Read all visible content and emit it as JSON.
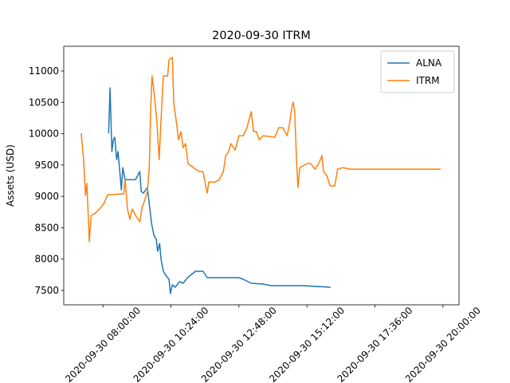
{
  "chart_data": {
    "type": "line",
    "title": "2020-09-30 ITRM",
    "y_label": "Assets (USD)",
    "xlim": [
      "2020-09-30 06:37:00",
      "2020-09-30 20:34:00"
    ],
    "xticks": [
      "2020-09-30 08:00:00",
      "2020-09-30 10:24:00",
      "2020-09-30 12:48:00",
      "2020-09-30 15:12:00",
      "2020-09-30 17:36:00",
      "2020-09-30 20:00:00"
    ],
    "ylim": [
      7271,
      11394
    ],
    "yticks": [
      7500,
      8000,
      8500,
      9000,
      9500,
      10000,
      10500,
      11000
    ],
    "legend": "upper right",
    "series": [
      {
        "name": "ALNA",
        "color": "#1f77b4",
        "x": [
          "2020-09-30 08:12:00",
          "2020-09-30 08:15:00",
          "2020-09-30 08:19:00",
          "2020-09-30 08:22:00",
          "2020-09-30 08:25:00",
          "2020-09-30 08:29:00",
          "2020-09-30 08:32:00",
          "2020-09-30 08:35:00",
          "2020-09-30 08:39:00",
          "2020-09-30 08:42:00",
          "2020-09-30 08:47:00",
          "2020-09-30 09:09:00",
          "2020-09-30 09:18:00",
          "2020-09-30 09:21:00",
          "2020-09-30 09:26:00",
          "2020-09-30 09:34:00",
          "2020-09-30 09:40:00",
          "2020-09-30 09:43:00",
          "2020-09-30 09:48:00",
          "2020-09-30 09:53:00",
          "2020-09-30 09:56:00",
          "2020-09-30 10:00:00",
          "2020-09-30 10:03:00",
          "2020-09-30 10:08:00",
          "2020-09-30 10:13:00",
          "2020-09-30 10:20:00",
          "2020-09-30 10:23:00",
          "2020-09-30 10:27:00",
          "2020-09-30 10:33:00",
          "2020-09-30 10:42:00",
          "2020-09-30 10:50:00",
          "2020-09-30 10:59:00",
          "2020-09-30 11:16:00",
          "2020-09-30 11:32:00",
          "2020-09-30 11:41:00",
          "2020-09-30 12:48:00",
          "2020-09-30 12:57:00",
          "2020-09-30 13:14:00",
          "2020-09-30 13:39:00",
          "2020-09-30 13:56:00",
          "2020-09-30 15:03:00",
          "2020-09-30 16:02:00"
        ],
        "values": [
          10006,
          10731,
          9714,
          9904,
          9943,
          9586,
          9714,
          9459,
          9103,
          9459,
          9268,
          9268,
          9396,
          9078,
          9052,
          9141,
          8760,
          8569,
          8378,
          8314,
          8123,
          8250,
          7996,
          7805,
          7742,
          7678,
          7449,
          7589,
          7551,
          7640,
          7615,
          7704,
          7805,
          7805,
          7704,
          7704,
          7678,
          7615,
          7602,
          7576,
          7576,
          7551
        ]
      },
      {
        "name": "ITRM",
        "color": "#ff7f0e",
        "x": [
          "2020-09-30 07:14:00",
          "2020-09-30 07:19:00",
          "2020-09-30 07:23:00",
          "2020-09-30 07:26:00",
          "2020-09-30 07:30:00",
          "2020-09-30 07:31:00",
          "2020-09-30 07:35:00",
          "2020-09-30 07:42:00",
          "2020-09-30 07:53:00",
          "2020-09-30 08:02:00",
          "2020-09-30 08:10:00",
          "2020-09-30 08:44:00",
          "2020-09-30 08:47:00",
          "2020-09-30 08:52:00",
          "2020-09-30 08:57:00",
          "2020-09-30 09:02:00",
          "2020-09-30 09:09:00",
          "2020-09-30 09:18:00",
          "2020-09-30 09:23:00",
          "2020-09-30 09:29:00",
          "2020-09-30 09:34:00",
          "2020-09-30 09:38:00",
          "2020-09-30 09:41:00",
          "2020-09-30 09:44:00",
          "2020-09-30 09:49:00",
          "2020-09-30 09:54:00",
          "2020-09-30 09:59:00",
          "2020-09-30 10:03:00",
          "2020-09-30 10:08:00",
          "2020-09-30 10:17:00",
          "2020-09-30 10:20:00",
          "2020-09-30 10:27:00",
          "2020-09-30 10:30:00",
          "2020-09-30 10:35:00",
          "2020-09-30 10:40:00",
          "2020-09-30 10:45:00",
          "2020-09-30 10:50:00",
          "2020-09-30 10:55:00",
          "2020-09-30 11:00:00",
          "2020-09-30 11:16:00",
          "2020-09-30 11:24:00",
          "2020-09-30 11:32:00",
          "2020-09-30 11:38:00",
          "2020-09-30 11:41:00",
          "2020-09-30 11:44:00",
          "2020-09-30 11:58:00",
          "2020-09-30 12:06:00",
          "2020-09-30 12:15:00",
          "2020-09-30 12:20:00",
          "2020-09-30 12:26:00",
          "2020-09-30 12:31:00",
          "2020-09-30 12:40:00",
          "2020-09-30 12:48:00",
          "2020-09-30 12:57:00",
          "2020-09-30 13:05:00",
          "2020-09-30 13:14:00",
          "2020-09-30 13:19:00",
          "2020-09-30 13:25:00",
          "2020-09-30 13:31:00",
          "2020-09-30 13:39:00",
          "2020-09-30 14:04:00",
          "2020-09-30 14:12:00",
          "2020-09-30 14:21:00",
          "2020-09-30 14:30:00",
          "2020-09-30 14:35:00",
          "2020-09-30 14:40:00",
          "2020-09-30 14:43:00",
          "2020-09-30 14:46:00",
          "2020-09-30 14:50:00",
          "2020-09-30 14:53:00",
          "2020-09-30 14:57:00",
          "2020-09-30 15:12:00",
          "2020-09-30 15:20:00",
          "2020-09-30 15:29:00",
          "2020-09-30 15:37:00",
          "2020-09-30 15:44:00",
          "2020-09-30 15:47:00",
          "2020-09-30 15:54:00",
          "2020-09-30 16:01:00",
          "2020-09-30 16:11:00",
          "2020-09-30 16:17:00",
          "2020-09-30 16:28:00",
          "2020-09-30 16:44:00",
          "2020-09-30 19:55:00"
        ],
        "values": [
          10006,
          9586,
          9014,
          9205,
          8505,
          8276,
          8696,
          8721,
          8798,
          8887,
          9027,
          9040,
          9268,
          8798,
          8632,
          8798,
          8696,
          8594,
          8823,
          8950,
          9078,
          9459,
          10350,
          10922,
          10604,
          10223,
          9586,
          10223,
          10922,
          10922,
          11177,
          11215,
          10477,
          10223,
          9904,
          10032,
          9777,
          9841,
          9523,
          9434,
          9396,
          9396,
          9141,
          9052,
          9230,
          9230,
          9268,
          9396,
          9650,
          9714,
          9841,
          9739,
          9968,
          9968,
          10095,
          10350,
          10032,
          10032,
          9904,
          9968,
          9943,
          10095,
          10095,
          9968,
          10159,
          10413,
          10503,
          10350,
          9586,
          9141,
          9459,
          9523,
          9523,
          9434,
          9523,
          9650,
          9396,
          9332,
          9167,
          9167,
          9434,
          9459,
          9434,
          9434
        ]
      }
    ]
  }
}
